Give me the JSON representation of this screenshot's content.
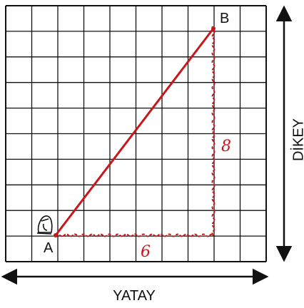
{
  "points": {
    "a": "A",
    "b": "B"
  },
  "legs": {
    "horizontal": "6",
    "vertical": "8"
  },
  "axes": {
    "horizontal": "YATAY",
    "vertical": "DİKEY"
  }
}
